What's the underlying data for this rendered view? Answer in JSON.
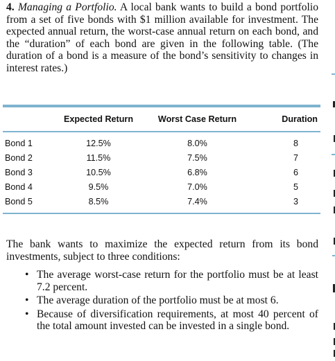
{
  "problem": {
    "number": "4.",
    "title": "Managing a Portfolio.",
    "text": "A local bank wants to build a bond portfolio from a set of five bonds with $1 million available for investment. The expected annual return, the worst-case annual return on each bond, and the “duration” of each bond are given in the following table. (The duration of a bond is a measure of the bond’s sensitivity to changes in interest rates.)"
  },
  "table": {
    "headers": {
      "expected": "Expected Return",
      "worst": "Worst Case Return",
      "duration": "Duration"
    },
    "rows": [
      {
        "name": "Bond 1",
        "expected": "12.5%",
        "worst": "8.0%",
        "duration": "8"
      },
      {
        "name": "Bond 2",
        "expected": "11.5%",
        "worst": "7.5%",
        "duration": "7"
      },
      {
        "name": "Bond 3",
        "expected": "10.5%",
        "worst": "6.8%",
        "duration": "6"
      },
      {
        "name": "Bond 4",
        "expected": "9.5%",
        "worst": "7.0%",
        "duration": "5"
      },
      {
        "name": "Bond 5",
        "expected": "8.5%",
        "worst": "7.4%",
        "duration": "3"
      }
    ]
  },
  "paragraph": "The bank wants to maximize the expected return from its bond investments, subject to three conditions:",
  "conditions": [
    "The average worst-case return for the portfolio must be at least 7.2 percent.",
    "The average duration of the portfolio must be at most 6.",
    "Because of diversification requirements, at most 40 percent of the total amount invested can be invested in a single bond."
  ],
  "bullet_glyph": "•"
}
